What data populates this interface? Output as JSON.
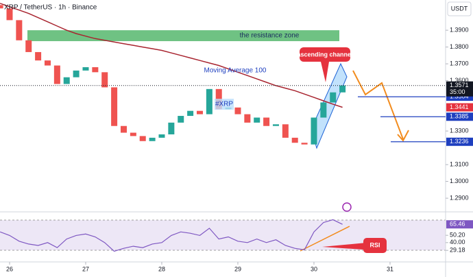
{
  "chart_data": {
    "type": "candlestick",
    "title": "XRP / TetherUS · 1h · Binance",
    "currency": "USDT",
    "x": [
      25.875,
      26,
      26.125,
      26.25,
      26.375,
      26.5,
      26.625,
      26.75,
      26.875,
      27,
      27.125,
      27.25,
      27.375,
      27.5,
      27.625,
      27.75,
      27.875,
      28,
      28.125,
      28.25,
      28.375,
      28.5,
      28.625,
      28.75,
      28.875,
      29,
      29.125,
      29.25,
      29.375,
      29.5,
      29.625,
      29.75,
      29.875,
      30,
      30.125,
      30.25,
      30.375
    ],
    "xlim": [
      25.874,
      31.73
    ],
    "xticks": [
      26,
      27,
      28,
      29,
      30,
      31
    ],
    "ylim": [
      1.2835,
      1.408
    ],
    "yticks": [
      {
        "value": 1.39,
        "label": "1.3900"
      },
      {
        "value": 1.38,
        "label": "1.3800"
      },
      {
        "value": 1.37,
        "label": "1.3700"
      },
      {
        "value": 1.36,
        "label": "1.3600"
      },
      {
        "value": 1.33,
        "label": "1.3300"
      },
      {
        "value": 1.31,
        "label": "1.3100"
      },
      {
        "value": 1.3,
        "label": "1.3000"
      },
      {
        "value": 1.29,
        "label": "1.2900"
      }
    ],
    "open": [
      1.405,
      1.403,
      1.396,
      1.384,
      1.377,
      1.372,
      1.369,
      1.358,
      1.362,
      1.366,
      1.368,
      1.365,
      1.356,
      1.333,
      1.329,
      1.327,
      1.324,
      1.326,
      1.328,
      1.335,
      1.339,
      1.342,
      1.34,
      1.355,
      1.343,
      1.344,
      1.34,
      1.335,
      1.338,
      1.333,
      1.334,
      1.326,
      1.323,
      1.322,
      1.338,
      1.347,
      1.353
    ],
    "close": [
      1.403,
      1.396,
      1.384,
      1.377,
      1.372,
      1.369,
      1.358,
      1.362,
      1.366,
      1.368,
      1.365,
      1.356,
      1.333,
      1.329,
      1.327,
      1.324,
      1.326,
      1.328,
      1.335,
      1.339,
      1.342,
      1.34,
      1.355,
      1.343,
      1.344,
      1.34,
      1.335,
      1.338,
      1.333,
      1.334,
      1.326,
      1.323,
      1.322,
      1.338,
      1.347,
      1.353,
      1.3571
    ],
    "up_color": "#26a69a",
    "down_color": "#ef5350",
    "moving_average": {
      "name": "Moving Average 100",
      "color": "#a8242f",
      "values": [
        1.406,
        1.404,
        1.402,
        1.4,
        1.3975,
        1.395,
        1.3925,
        1.39,
        1.388,
        1.3865,
        1.385,
        1.384,
        1.383,
        1.382,
        1.381,
        1.38,
        1.379,
        1.378,
        1.3765,
        1.375,
        1.3735,
        1.372,
        1.3705,
        1.369,
        1.367,
        1.365,
        1.363,
        1.361,
        1.359,
        1.357,
        1.3555,
        1.354,
        1.352,
        1.35,
        1.348,
        1.346,
        1.3441
      ]
    },
    "countdown": "35:00",
    "levels": [
      1.3504,
      1.3385,
      1.3236
    ],
    "level_color": "#1e3fbf",
    "zone": {
      "label": "the resistance zone",
      "top": 1.39,
      "bottom": 1.3835,
      "color": "#3fae5a"
    },
    "annotations": {
      "channel": "ascending channel",
      "tag": "#XRP",
      "rsi": "RSI"
    },
    "rsi": {
      "color": "#7e57c2",
      "values": [
        55,
        50,
        42,
        38,
        36,
        40,
        33,
        45,
        50,
        52,
        48,
        40,
        28,
        32,
        35,
        33,
        38,
        40,
        50,
        55,
        53,
        50,
        60,
        45,
        48,
        42,
        40,
        45,
        40,
        44,
        36,
        32,
        30,
        55,
        68,
        72,
        65.46
      ],
      "ylim": [
        15,
        80
      ],
      "yticks": [
        {
          "value": 50.2,
          "label": "50.20"
        },
        {
          "value": 40,
          "label": "40.00"
        },
        29.18
      ]
    }
  }
}
